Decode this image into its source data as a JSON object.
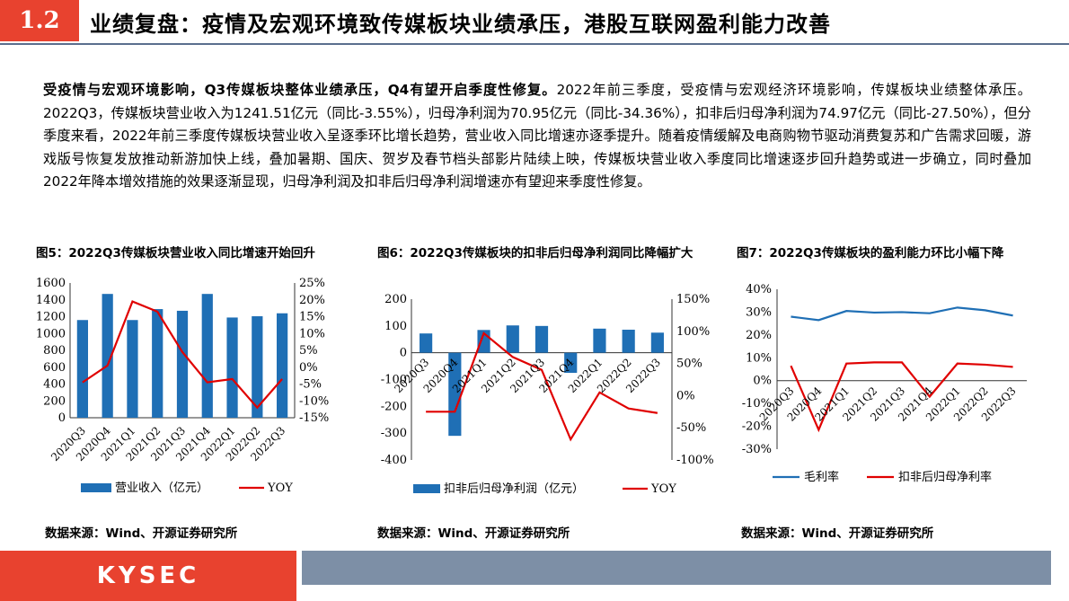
{
  "header": {
    "section_number": "1.2",
    "title": "业绩复盘：疫情及宏观环境致传媒板块业绩承压，港股互联网盈利能力改善"
  },
  "paragraph": {
    "bold_lead": "受疫情与宏观环境影响，Q3传媒板块整体业绩承压，Q4有望开启季度性修复。",
    "body": "2022年前三季度，受疫情与宏观经济环境影响，传媒板块业绩整体承压。2022Q3，传媒板块营业收入为1241.51亿元（同比-3.55%），归母净利润为70.95亿元（同比-34.36%），扣非后归母净利润为74.97亿元（同比-27.50%），但分季度来看，2022年前三季度传媒板块营业收入呈逐季环比增长趋势，营业收入同比增速亦逐季提升。随着疫情缓解及电商购物节驱动消费复苏和广告需求回暖，游戏版号恢复发放推动新游加快上线，叠加暑期、国庆、贺岁及春节档头部影片陆续上映，传媒板块营业收入季度同比增速逐步回升趋势或进一步确立，同时叠加2022年降本增效措施的效果逐渐显现，归母净利润及扣非后归母净利润增速亦有望迎来季度性修复。"
  },
  "figures": [
    {
      "title": "图5：2022Q3传媒板块营业收入同比增速开始回升",
      "source": "数据来源：Wind、开源证券研究所"
    },
    {
      "title": "图6：2022Q3传媒板块的扣非后归母净利润同比降幅扩大",
      "source": "数据来源：Wind、开源证券研究所"
    },
    {
      "title": "图7：2022Q3传媒板块的盈利能力环比小幅下降",
      "source": "数据来源：Wind、开源证券研究所"
    }
  ],
  "chart_data": [
    {
      "type": "bar",
      "categories": [
        "2020Q3",
        "2020Q4",
        "2021Q1",
        "2021Q2",
        "2021Q3",
        "2021Q4",
        "2022Q1",
        "2022Q2",
        "2022Q3"
      ],
      "series": [
        {
          "name": "营业收入（亿元）",
          "type": "bar",
          "axis": "left",
          "color": "#1f6fb5",
          "values": [
            1160,
            1470,
            1160,
            1290,
            1270,
            1470,
            1190,
            1205,
            1240
          ]
        },
        {
          "name": "YOY",
          "type": "line",
          "axis": "right",
          "color": "#e00000",
          "values": [
            -4.5,
            0.5,
            19.5,
            16.5,
            4.5,
            -4.5,
            -3.5,
            -12.0,
            -3.5
          ]
        }
      ],
      "ylim_left": [
        0,
        1600
      ],
      "yticks_left": [
        "0",
        "200",
        "400",
        "600",
        "800",
        "1000",
        "1200",
        "1400",
        "1600"
      ],
      "ylim_right": [
        -15,
        25
      ],
      "yticks_right": [
        "-15%",
        "-10%",
        "-5%",
        "0%",
        "5%",
        "10%",
        "15%",
        "20%",
        "25%"
      ]
    },
    {
      "type": "bar",
      "categories": [
        "2020Q3",
        "2020Q4",
        "2021Q1",
        "2021Q2",
        "2021Q3",
        "2021Q4",
        "2022Q1",
        "2022Q2",
        "2022Q3"
      ],
      "series": [
        {
          "name": "扣非后归母净利润（亿元）",
          "type": "bar",
          "axis": "left",
          "color": "#1f6fb5",
          "values": [
            72,
            -310,
            85,
            102,
            100,
            -75,
            90,
            86,
            75
          ]
        },
        {
          "name": "YOY",
          "type": "line",
          "axis": "right",
          "color": "#e00000",
          "values": [
            -25,
            -25,
            97,
            60,
            40,
            -68,
            5,
            -20,
            -27
          ]
        }
      ],
      "ylim_left": [
        -400,
        200
      ],
      "yticks_left": [
        "-400",
        "-300",
        "-200",
        "-100",
        "0",
        "100",
        "200"
      ],
      "ylim_right": [
        -100,
        150
      ],
      "yticks_right": [
        "-100%",
        "-50%",
        "0%",
        "50%",
        "100%",
        "150%"
      ]
    },
    {
      "type": "line",
      "categories": [
        "2020Q3",
        "2020Q4",
        "2021Q1",
        "2021Q2",
        "2021Q3",
        "2021Q4",
        "2022Q1",
        "2022Q2",
        "2022Q3"
      ],
      "series": [
        {
          "name": "毛利率",
          "color": "#1f6fb5",
          "values": [
            28.0,
            26.5,
            30.5,
            29.8,
            30.0,
            29.5,
            32.0,
            30.8,
            28.5
          ]
        },
        {
          "name": "扣非后归母净利率",
          "color": "#e00000",
          "values": [
            6.5,
            -21.5,
            7.5,
            8.0,
            8.0,
            -7.0,
            7.5,
            7.0,
            6.0
          ]
        }
      ],
      "ylim": [
        -30,
        40
      ],
      "yticks": [
        "-30%",
        "-20%",
        "-10%",
        "0%",
        "10%",
        "20%",
        "30%",
        "40%"
      ]
    }
  ],
  "footer": {
    "logo": "KYSEC"
  }
}
